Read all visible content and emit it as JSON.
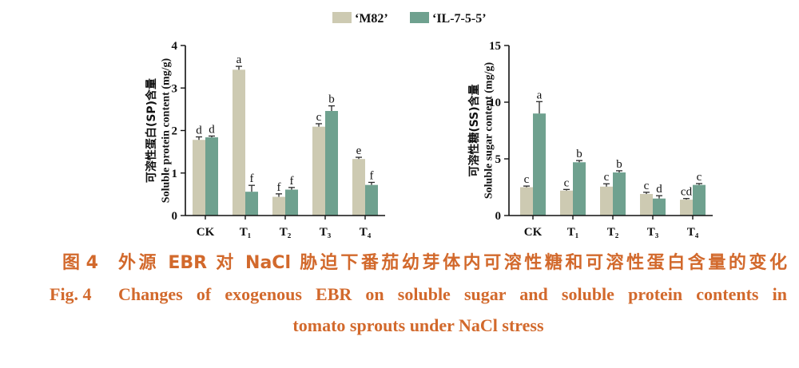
{
  "chart_data": [
    {
      "type": "bar",
      "ylabel_cn": "可溶性蛋白(SP)含量",
      "ylabel_en": "Soluble protein content (mg/g)",
      "categories": [
        "CK",
        "T₁",
        "T₂",
        "T₃",
        "T₄"
      ],
      "ylim": [
        0,
        4
      ],
      "yticks": [
        0,
        1,
        2,
        3,
        4
      ],
      "grid": false,
      "legend_position": "top-center",
      "series": [
        {
          "name": "‘M82’",
          "color": "#cdcab2",
          "values": [
            1.78,
            3.43,
            0.44,
            2.09,
            1.33
          ],
          "errors": [
            0.07,
            0.08,
            0.07,
            0.07,
            0.04
          ],
          "letters": [
            "d",
            "a",
            "f",
            "c",
            "e"
          ]
        },
        {
          "name": "‘IL-7-5-5’",
          "color": "#6fa18f",
          "values": [
            1.84,
            0.56,
            0.61,
            2.46,
            0.72
          ],
          "errors": [
            0.03,
            0.15,
            0.05,
            0.12,
            0.06
          ],
          "letters": [
            "d",
            "f",
            "f",
            "b",
            "f"
          ]
        }
      ]
    },
    {
      "type": "bar",
      "ylabel_cn": "可溶性糖(SS)含量",
      "ylabel_en": "Soluble sugar content (mg/g)",
      "categories": [
        "CK",
        "T₁",
        "T₂",
        "T₃",
        "T₄"
      ],
      "ylim": [
        0,
        15
      ],
      "yticks": [
        0,
        5,
        10,
        15
      ],
      "grid": false,
      "legend_position": "top-center",
      "series": [
        {
          "name": "‘M82’",
          "color": "#cdcab2",
          "values": [
            2.5,
            2.2,
            2.55,
            1.9,
            1.4
          ],
          "errors": [
            0.1,
            0.1,
            0.25,
            0.15,
            0.1
          ],
          "letters": [
            "c",
            "c",
            "c",
            "c",
            "cd"
          ]
        },
        {
          "name": "‘IL-7-5-5’",
          "color": "#6fa18f",
          "values": [
            9.0,
            4.7,
            3.8,
            1.5,
            2.7
          ],
          "errors": [
            1.05,
            0.15,
            0.15,
            0.25,
            0.12
          ],
          "letters": [
            "a",
            "b",
            "b",
            "d",
            "c"
          ]
        }
      ]
    }
  ],
  "caption": {
    "cn_label": "图 4",
    "cn_text": "外源 EBR 对 NaCl 胁迫下番茄幼芽体内可溶性糖和可溶性蛋白含量的变化",
    "en_label": "Fig. 4",
    "en_line1": "Changes of exogenous EBR on soluble sugar and soluble protein contents in",
    "en_line2": "tomato sprouts under NaCl stress"
  }
}
